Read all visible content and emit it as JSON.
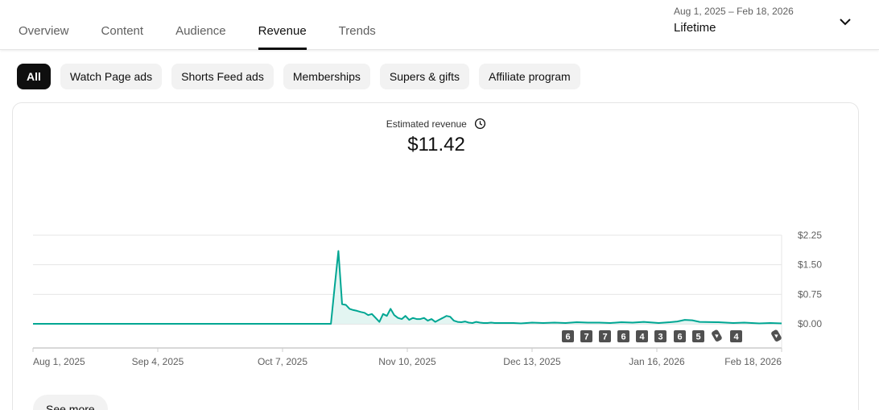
{
  "tabs": [
    {
      "label": "Overview",
      "active": false
    },
    {
      "label": "Content",
      "active": false
    },
    {
      "label": "Audience",
      "active": false
    },
    {
      "label": "Revenue",
      "active": true
    },
    {
      "label": "Trends",
      "active": false
    }
  ],
  "date_range": {
    "range_text": "Aug 1, 2025 – Feb 18, 2026",
    "label": "Lifetime",
    "icon": "chevron-down-icon"
  },
  "chips": [
    {
      "label": "All",
      "active": true
    },
    {
      "label": "Watch Page ads",
      "active": false
    },
    {
      "label": "Shorts Feed ads",
      "active": false
    },
    {
      "label": "Memberships",
      "active": false
    },
    {
      "label": "Supers & gifts",
      "active": false
    },
    {
      "label": "Affiliate program",
      "active": false
    }
  ],
  "metric": {
    "label": "Estimated revenue",
    "value": "$11.42",
    "icon": "clock-icon"
  },
  "see_more_label": "See more",
  "markers": [
    "6",
    "7",
    "7",
    "6",
    "4",
    "3",
    "6",
    "5",
    "shorts",
    "4",
    "shorts"
  ],
  "chart_data": {
    "type": "line",
    "x_tick_labels": [
      "Aug 1, 2025",
      "Sep 4, 2025",
      "Oct 7, 2025",
      "Nov 10, 2025",
      "Dec 13, 2025",
      "Jan 16, 2026",
      "Feb 18, 2026"
    ],
    "x_range": [
      "2025-08-01",
      "2026-02-18"
    ],
    "y_tick_labels": [
      "$2.25",
      "$1.50",
      "$0.75",
      "$0.00"
    ],
    "ylim": [
      0,
      2.25
    ],
    "grid": true,
    "axis_position": "right",
    "colors": {
      "line": "#00a693",
      "fill": "#e3f5f2"
    },
    "series": [
      {
        "x": [
          "2025-08-01",
          "2025-10-20",
          "2025-10-21",
          "2025-10-22",
          "2025-10-23",
          "2025-10-24",
          "2025-10-25",
          "2025-10-26",
          "2025-10-27",
          "2025-10-28",
          "2025-10-29",
          "2025-10-30",
          "2025-10-31",
          "2025-11-01",
          "2025-11-02",
          "2025-11-03",
          "2025-11-04",
          "2025-11-05",
          "2025-11-06",
          "2025-11-07",
          "2025-11-08",
          "2025-11-09",
          "2025-11-10",
          "2025-11-11",
          "2025-11-12",
          "2025-11-13",
          "2025-11-14",
          "2025-11-15",
          "2025-11-16",
          "2025-11-17",
          "2025-11-18",
          "2025-11-19",
          "2025-11-20",
          "2025-11-21",
          "2025-11-22",
          "2025-11-23",
          "2025-11-24",
          "2025-11-25",
          "2025-11-26",
          "2025-11-27",
          "2025-11-28",
          "2025-11-29",
          "2025-11-30",
          "2025-12-01",
          "2025-12-02",
          "2025-12-03",
          "2025-12-05",
          "2025-12-08",
          "2025-12-10",
          "2025-12-13",
          "2025-12-16",
          "2025-12-19",
          "2025-12-22",
          "2025-12-25",
          "2025-12-28",
          "2025-12-31",
          "2026-01-03",
          "2026-01-06",
          "2026-01-09",
          "2026-01-12",
          "2026-01-16",
          "2026-01-19",
          "2026-01-21",
          "2026-01-23",
          "2026-01-25",
          "2026-01-27",
          "2026-02-01",
          "2026-02-05",
          "2026-02-08",
          "2026-02-12",
          "2026-02-15",
          "2026-02-18"
        ],
        "values": [
          0,
          0,
          0.95,
          1.85,
          0.5,
          0.48,
          0.38,
          0.35,
          0.33,
          0.3,
          0.28,
          0.22,
          0.25,
          0.15,
          0.05,
          0.25,
          0.2,
          0.38,
          0.22,
          0.15,
          0.12,
          0.2,
          0.1,
          0.15,
          0.12,
          0.12,
          0.15,
          0.08,
          0.12,
          0.05,
          0.1,
          0.15,
          0.2,
          0.18,
          0.08,
          0.05,
          0.04,
          0.06,
          0.03,
          0.02,
          0.05,
          0.03,
          0.02,
          0.02,
          0.03,
          0.02,
          0.02,
          0.02,
          0.01,
          0.03,
          0.02,
          0.03,
          0.02,
          0.04,
          0.03,
          0.03,
          0.02,
          0.04,
          0.03,
          0.05,
          0.02,
          0.04,
          0.06,
          0.1,
          0.09,
          0.05,
          0.04,
          0.02,
          0.03,
          0.01,
          0.02,
          0.01
        ]
      }
    ]
  }
}
